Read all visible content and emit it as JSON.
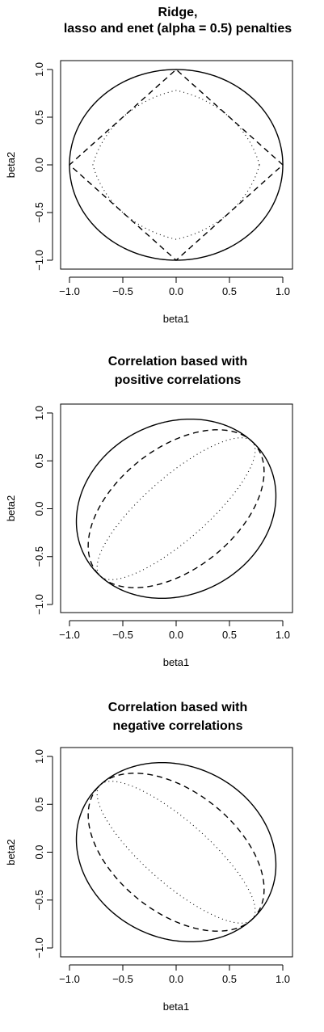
{
  "chart_data": [
    {
      "type": "line",
      "title": [
        "Ridge,",
        "lasso and enet (alpha = 0.5) penalties"
      ],
      "xlabel": "beta1",
      "ylabel": "beta2",
      "xlim": [
        -1.0,
        1.0
      ],
      "ylim": [
        -1.0,
        1.0
      ],
      "xticks": [
        "-1.0",
        "-0.5",
        "0.0",
        "0.5",
        "1.0"
      ],
      "yticks": [
        "-1.0",
        "-0.5",
        "0.0",
        "0.5",
        "1.0"
      ],
      "grid": false,
      "series": [
        {
          "penalty": "ridge",
          "norm": 2.0,
          "line_style": "solid"
        },
        {
          "penalty": "enet",
          "alpha": 0.5,
          "line_style": "dotted"
        },
        {
          "penalty": "lasso",
          "norm": 1.0,
          "line_style": "dashed"
        }
      ]
    },
    {
      "type": "line",
      "title": [
        "Correlation based with",
        "positive correlations"
      ],
      "xlabel": "beta1",
      "ylabel": "beta2",
      "xlim": [
        -1.0,
        1.0
      ],
      "ylim": [
        -1.0,
        1.0
      ],
      "xticks": [
        "-1.0",
        "-0.5",
        "0.0",
        "0.5",
        "1.0"
      ],
      "yticks": [
        "-1.0",
        "-0.5",
        "0.0",
        "0.5",
        "1.0"
      ],
      "grid": false,
      "series": [
        {
          "correlation": 0.5,
          "line_style": "solid"
        },
        {
          "correlation": 0.8,
          "line_style": "dashed"
        },
        {
          "correlation": 0.95,
          "line_style": "dotted"
        }
      ]
    },
    {
      "type": "line",
      "title": [
        "Correlation based with",
        "negative correlations"
      ],
      "xlabel": "beta1",
      "ylabel": "beta2",
      "xlim": [
        -1.0,
        1.0
      ],
      "ylim": [
        -1.0,
        1.0
      ],
      "xticks": [
        "-1.0",
        "-0.5",
        "0.0",
        "0.5",
        "1.0"
      ],
      "yticks": [
        "-1.0",
        "-0.5",
        "0.0",
        "0.5",
        "1.0"
      ],
      "grid": false,
      "series": [
        {
          "correlation": -0.5,
          "line_style": "solid"
        },
        {
          "correlation": -0.8,
          "line_style": "dashed"
        },
        {
          "correlation": -0.95,
          "line_style": "dotted"
        }
      ]
    }
  ]
}
